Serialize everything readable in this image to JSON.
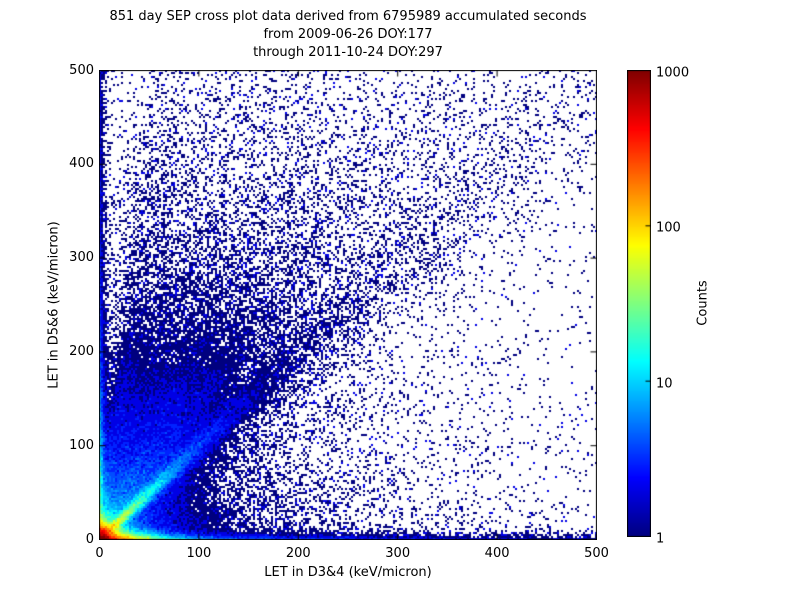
{
  "chart_data": {
    "type": "heatmap",
    "title": "851 day SEP cross plot data derived from 6795989 accumulated seconds",
    "subtitle1": "from 2009-06-26 DOY:177",
    "subtitle2": "through 2011-10-24 DOY:297",
    "xlabel": "LET in D3&4 (keV/micron)",
    "ylabel": "LET in D5&6 (keV/micron)",
    "xlim": [
      0,
      500
    ],
    "ylim": [
      0,
      500
    ],
    "x_ticks": [
      "0",
      "100",
      "200",
      "300",
      "400",
      "500"
    ],
    "y_ticks": [
      "0",
      "100",
      "200",
      "300",
      "400",
      "500"
    ],
    "grid": false,
    "legend_position": "none",
    "point_color_low": "#000080",
    "point_color_high": "#800000",
    "colorbar": {
      "label": "Counts",
      "scale": "log",
      "min": 1,
      "max": 1000,
      "tick_labels": [
        "1000",
        "100",
        "10",
        "1"
      ],
      "colormap": "jet"
    },
    "density_model": {
      "description": "2D histogram of LET coincidence counts; log-color jet map. Hot core at origin (~1000 counts), bright y=x ridge fading by ~120 keV/micron, dense bands hugging both axes out to 500, fan of faint rays from origin at slopes 0.22-8.5, broad sparse diagonal band to (500,500), diffuse single-count background.",
      "cell_size_px": 2,
      "components": [
        {
          "kind": "radial",
          "amp": 2600,
          "scale": 4.5
        },
        {
          "kind": "xband",
          "amp": 900,
          "xscale": 18,
          "yscale": 3.5
        },
        {
          "kind": "xband",
          "amp": 5,
          "xscale": 420,
          "yscale": 4
        },
        {
          "kind": "xband",
          "amp": 2.5,
          "xscale": 140,
          "yscale": 22
        },
        {
          "kind": "yband",
          "amp": 70,
          "yscale": 55,
          "xscale": 2.5
        },
        {
          "kind": "yband",
          "amp": 3.5,
          "yscale": 1200,
          "xscale": 3.5
        },
        {
          "kind": "yband",
          "amp": 2.0,
          "yscale": 130,
          "xscale": 12
        },
        {
          "kind": "ray",
          "slope": 1.0,
          "amp": 120,
          "uscale": 30,
          "w0": 1.8,
          "wgrow": 0.03
        },
        {
          "kind": "ray",
          "slope": 1.0,
          "amp": 6,
          "uscale": 110,
          "w0": 3,
          "wgrow": 0.05
        },
        {
          "kind": "ray",
          "slope": 1.0,
          "amp": 0.9,
          "uscale": 350,
          "w0": 8,
          "wgrow": 0.07
        },
        {
          "kind": "ray",
          "slope": 1.45,
          "amp": 4,
          "uscale": 160,
          "w0": 2.5,
          "wgrow": 0.05
        },
        {
          "kind": "ray",
          "slope": 1.95,
          "amp": 3.2,
          "uscale": 170,
          "w0": 2.5,
          "wgrow": 0.05
        },
        {
          "kind": "ray",
          "slope": 2.6,
          "amp": 2.6,
          "uscale": 170,
          "w0": 2.5,
          "wgrow": 0.05
        },
        {
          "kind": "ray",
          "slope": 3.6,
          "amp": 2.2,
          "uscale": 180,
          "w0": 2.5,
          "wgrow": 0.04
        },
        {
          "kind": "ray",
          "slope": 5.5,
          "amp": 2.0,
          "uscale": 190,
          "w0": 2.5,
          "wgrow": 0.035
        },
        {
          "kind": "ray",
          "slope": 8.5,
          "amp": 1.8,
          "uscale": 200,
          "w0": 2.5,
          "wgrow": 0.03
        },
        {
          "kind": "ray",
          "slope": 0.62,
          "amp": 2.4,
          "uscale": 100,
          "w0": 3,
          "wgrow": 0.06
        },
        {
          "kind": "ray",
          "slope": 0.4,
          "amp": 1.7,
          "uscale": 100,
          "w0": 3,
          "wgrow": 0.06
        },
        {
          "kind": "ray",
          "slope": 0.22,
          "amp": 1.4,
          "uscale": 120,
          "w0": 2.5,
          "wgrow": 0.05
        },
        {
          "kind": "diffuse",
          "amp": 0.3,
          "scale": 240
        },
        {
          "kind": "uniform",
          "amp": 0.012
        }
      ]
    }
  }
}
